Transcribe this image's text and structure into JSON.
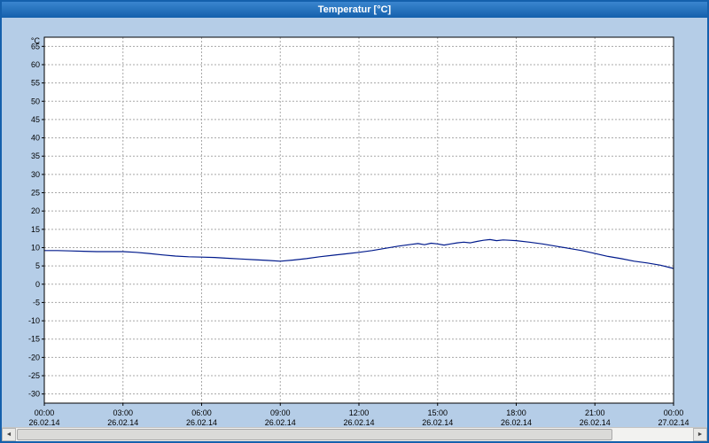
{
  "window": {
    "title": "Temperatur [°C]"
  },
  "chart_data": {
    "type": "line",
    "title": "Temperatur [°C]",
    "y_unit": "°C",
    "xlabel": "",
    "ylabel": "°C",
    "ylim": [
      -32.5,
      67.5
    ],
    "x_hours_range": [
      0,
      24
    ],
    "grid": "dashed",
    "legend_position": "none",
    "y_ticks": [
      65,
      60,
      55,
      50,
      45,
      40,
      35,
      30,
      25,
      20,
      15,
      10,
      5,
      0,
      -5,
      -10,
      -15,
      -20,
      -25,
      -30
    ],
    "x_ticks": [
      {
        "hour": 0,
        "time": "00:00",
        "date": "26.02.14"
      },
      {
        "hour": 3,
        "time": "03:00",
        "date": "26.02.14"
      },
      {
        "hour": 6,
        "time": "06:00",
        "date": "26.02.14"
      },
      {
        "hour": 9,
        "time": "09:00",
        "date": "26.02.14"
      },
      {
        "hour": 12,
        "time": "12:00",
        "date": "26.02.14"
      },
      {
        "hour": 15,
        "time": "15:00",
        "date": "26.02.14"
      },
      {
        "hour": 18,
        "time": "18:00",
        "date": "26.02.14"
      },
      {
        "hour": 21,
        "time": "21:00",
        "date": "26.02.14"
      },
      {
        "hour": 24,
        "time": "00:00",
        "date": "27.02.14"
      }
    ],
    "series": [
      {
        "name": "Temperatur",
        "color": "#001a8c",
        "x": [
          0,
          0.5,
          1,
          1.5,
          2,
          2.5,
          3,
          3.5,
          4,
          4.5,
          5,
          5.5,
          6,
          6.5,
          7,
          7.5,
          8,
          8.5,
          9,
          9.5,
          10,
          10.5,
          11,
          11.5,
          12,
          12.5,
          13,
          13.5,
          14,
          14.25,
          14.5,
          14.75,
          15,
          15.25,
          15.5,
          15.75,
          16,
          16.25,
          16.5,
          16.75,
          17,
          17.25,
          17.5,
          17.75,
          18,
          18.5,
          19,
          19.5,
          20,
          20.5,
          21,
          21.5,
          22,
          22.5,
          23,
          23.5,
          24
        ],
        "values": [
          9.2,
          9.2,
          9.1,
          9.0,
          8.9,
          8.9,
          8.9,
          8.7,
          8.4,
          8.0,
          7.7,
          7.5,
          7.4,
          7.3,
          7.1,
          6.9,
          6.7,
          6.5,
          6.3,
          6.6,
          7.0,
          7.5,
          7.9,
          8.3,
          8.7,
          9.2,
          9.8,
          10.4,
          10.9,
          11.1,
          10.8,
          11.2,
          11.0,
          10.7,
          11.0,
          11.3,
          11.5,
          11.3,
          11.7,
          12.0,
          12.2,
          11.9,
          12.1,
          12.0,
          11.9,
          11.5,
          11.0,
          10.4,
          9.8,
          9.2,
          8.4,
          7.6,
          7.0,
          6.3,
          5.8,
          5.2,
          4.3
        ]
      }
    ],
    "colors": {
      "plot_background": "#ffffff",
      "window_background": "#b5cde7",
      "grid_line": "#a8a8a8",
      "axis_border": "#000000",
      "title_bar": "#1460ac",
      "label_text": "#000000"
    }
  },
  "scrollbar": {
    "left_arrow": "◄",
    "right_arrow": "►"
  }
}
